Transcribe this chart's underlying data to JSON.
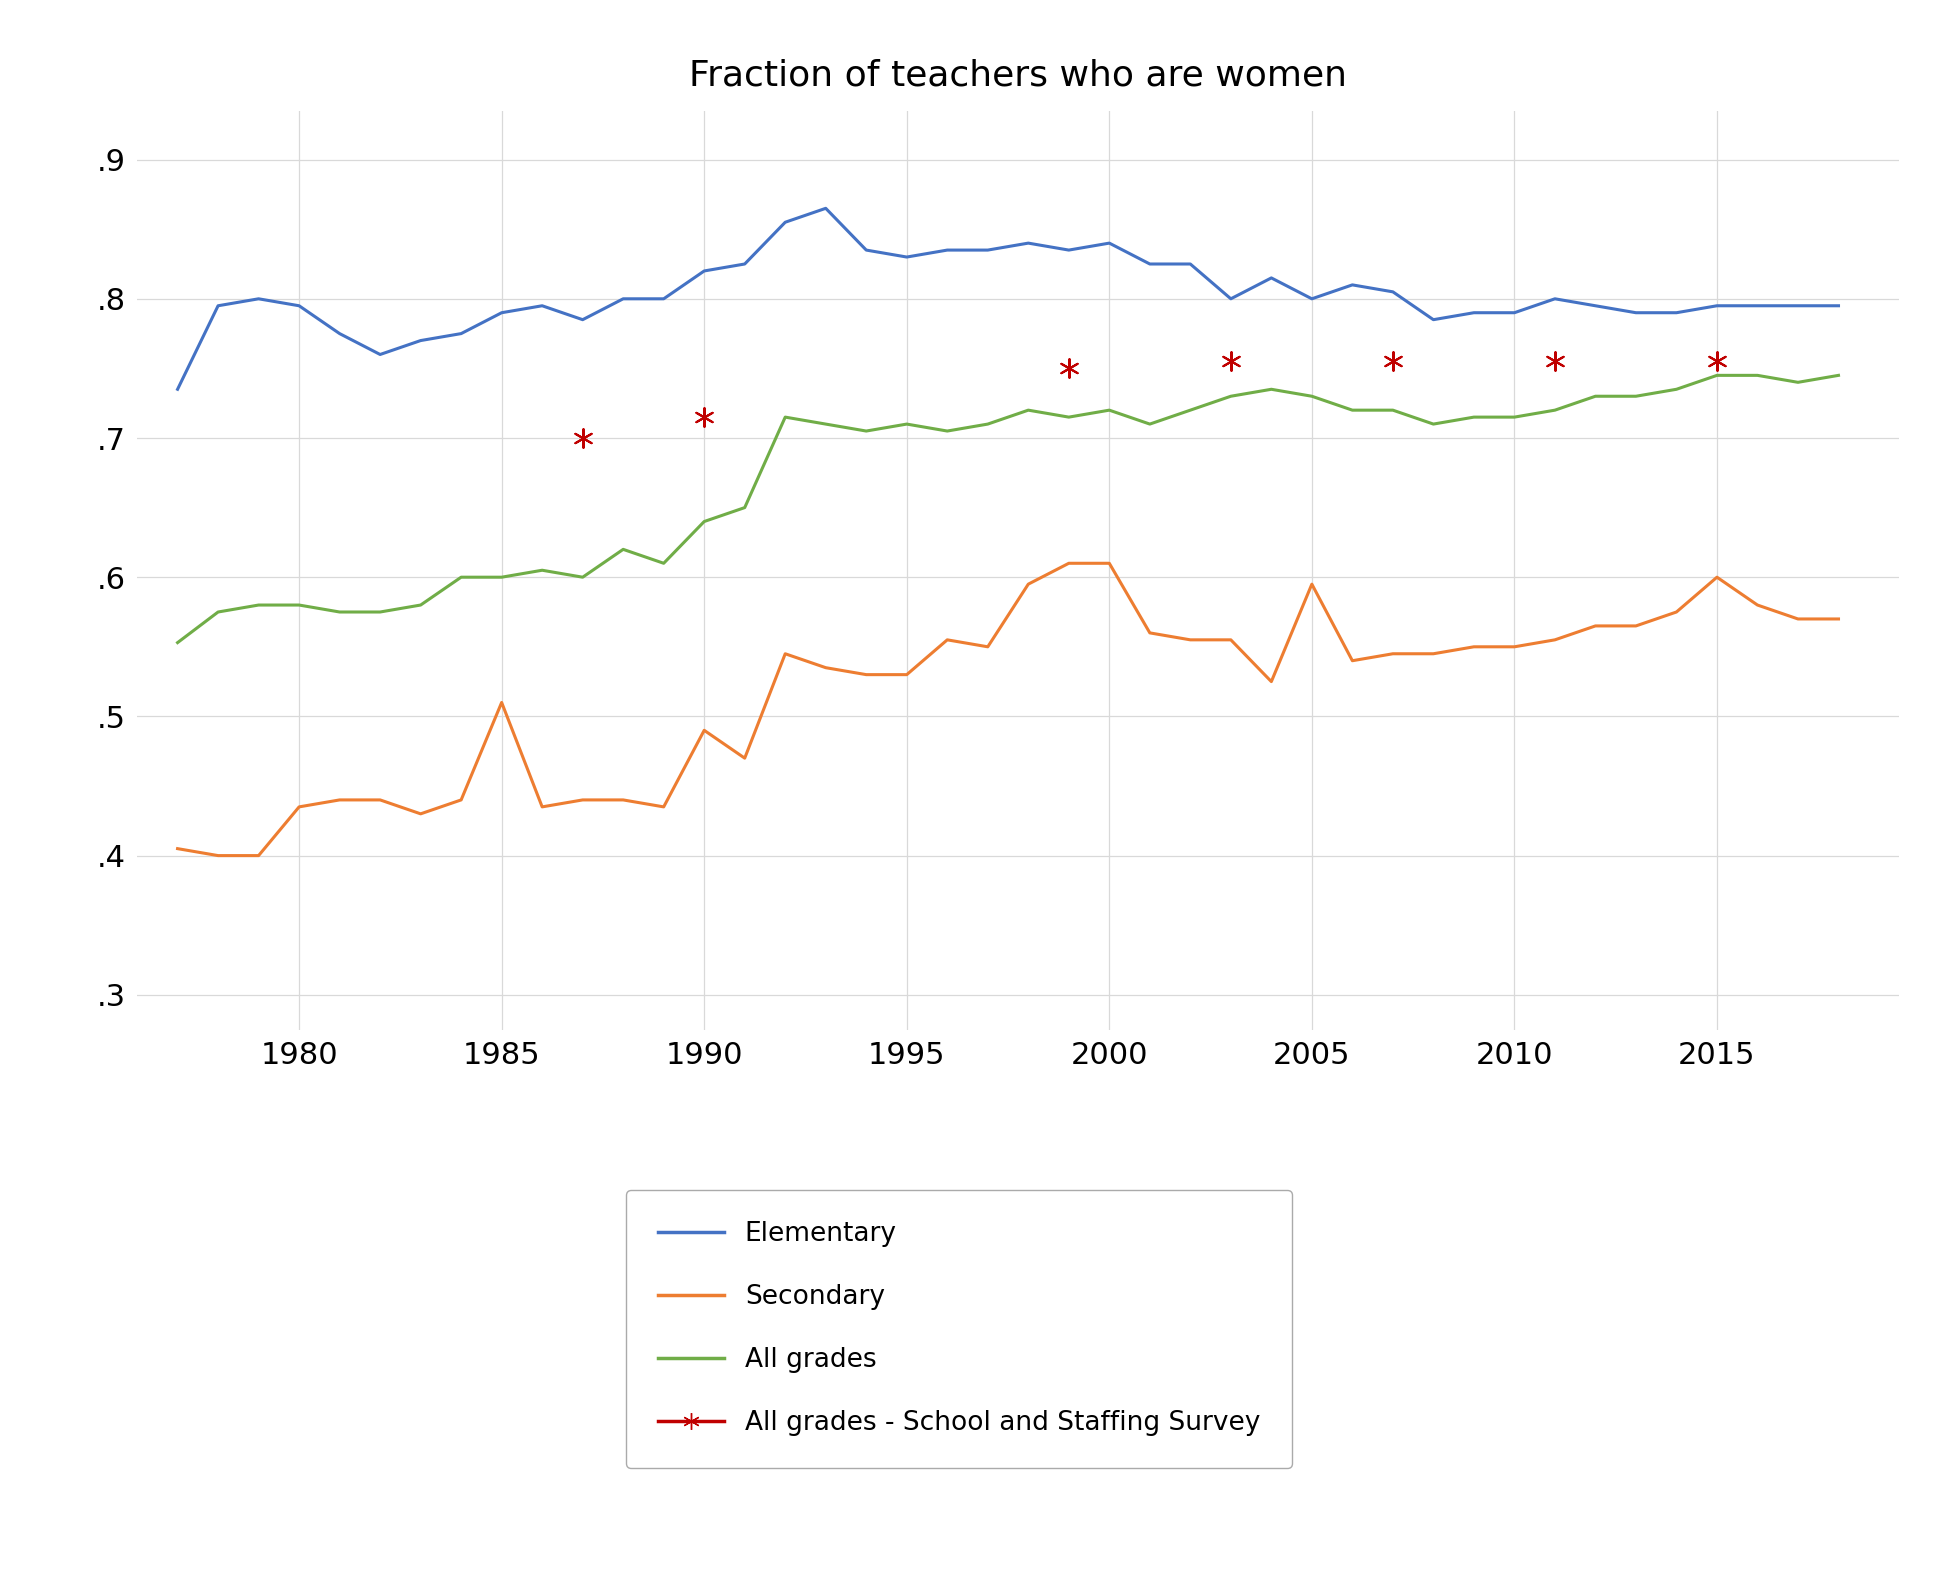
{
  "title": "Fraction of teachers who are women",
  "title_fontsize": 26,
  "xlim": [
    1976,
    2019.5
  ],
  "ylim": [
    0.275,
    0.935
  ],
  "yticks": [
    0.3,
    0.4,
    0.5,
    0.6,
    0.7,
    0.8,
    0.9
  ],
  "ytick_labels": [
    ".3",
    ".4",
    ".5",
    ".6",
    ".7",
    ".8",
    ".9"
  ],
  "xticks": [
    1980,
    1985,
    1990,
    1995,
    2000,
    2005,
    2010,
    2015
  ],
  "elementary": {
    "x": [
      1977,
      1978,
      1979,
      1980,
      1981,
      1982,
      1983,
      1984,
      1985,
      1986,
      1987,
      1988,
      1989,
      1990,
      1991,
      1992,
      1993,
      1994,
      1995,
      1996,
      1997,
      1998,
      1999,
      2000,
      2001,
      2002,
      2003,
      2004,
      2005,
      2006,
      2007,
      2008,
      2009,
      2010,
      2011,
      2012,
      2013,
      2014,
      2015,
      2016,
      2017,
      2018
    ],
    "y": [
      0.735,
      0.795,
      0.8,
      0.795,
      0.775,
      0.76,
      0.77,
      0.775,
      0.79,
      0.795,
      0.785,
      0.8,
      0.8,
      0.82,
      0.825,
      0.855,
      0.865,
      0.835,
      0.83,
      0.835,
      0.835,
      0.84,
      0.835,
      0.84,
      0.825,
      0.825,
      0.8,
      0.815,
      0.8,
      0.81,
      0.805,
      0.785,
      0.79,
      0.79,
      0.8,
      0.795,
      0.79,
      0.79,
      0.795,
      0.795,
      0.795,
      0.795
    ],
    "color": "#4472C4"
  },
  "secondary": {
    "x": [
      1977,
      1978,
      1979,
      1980,
      1981,
      1982,
      1983,
      1984,
      1985,
      1986,
      1987,
      1988,
      1989,
      1990,
      1991,
      1992,
      1993,
      1994,
      1995,
      1996,
      1997,
      1998,
      1999,
      2000,
      2001,
      2002,
      2003,
      2004,
      2005,
      2006,
      2007,
      2008,
      2009,
      2010,
      2011,
      2012,
      2013,
      2014,
      2015,
      2016,
      2017,
      2018
    ],
    "y": [
      0.405,
      0.4,
      0.4,
      0.435,
      0.44,
      0.44,
      0.43,
      0.44,
      0.51,
      0.435,
      0.44,
      0.44,
      0.435,
      0.49,
      0.47,
      0.545,
      0.535,
      0.53,
      0.53,
      0.555,
      0.55,
      0.595,
      0.61,
      0.61,
      0.56,
      0.555,
      0.555,
      0.525,
      0.595,
      0.54,
      0.545,
      0.545,
      0.55,
      0.55,
      0.555,
      0.565,
      0.565,
      0.575,
      0.6,
      0.58,
      0.57,
      0.57
    ],
    "color": "#ED7D31"
  },
  "all_grades": {
    "x": [
      1977,
      1978,
      1979,
      1980,
      1981,
      1982,
      1983,
      1984,
      1985,
      1986,
      1987,
      1988,
      1989,
      1990,
      1991,
      1992,
      1993,
      1994,
      1995,
      1996,
      1997,
      1998,
      1999,
      2000,
      2001,
      2002,
      2003,
      2004,
      2005,
      2006,
      2007,
      2008,
      2009,
      2010,
      2011,
      2012,
      2013,
      2014,
      2015,
      2016,
      2017,
      2018
    ],
    "y": [
      0.553,
      0.575,
      0.58,
      0.58,
      0.575,
      0.575,
      0.58,
      0.6,
      0.6,
      0.605,
      0.6,
      0.62,
      0.61,
      0.64,
      0.65,
      0.715,
      0.71,
      0.705,
      0.71,
      0.705,
      0.71,
      0.72,
      0.715,
      0.72,
      0.71,
      0.72,
      0.73,
      0.735,
      0.73,
      0.72,
      0.72,
      0.71,
      0.715,
      0.715,
      0.72,
      0.73,
      0.73,
      0.735,
      0.745,
      0.745,
      0.74,
      0.745
    ],
    "color": "#70AD47"
  },
  "staffing_survey": {
    "x": [
      1987,
      1990,
      1999,
      2003,
      2007,
      2011,
      2015
    ],
    "y": [
      0.7,
      0.715,
      0.75,
      0.755,
      0.755,
      0.755,
      0.755
    ],
    "color": "#C00000"
  },
  "background_color": "#FFFFFF",
  "legend_fontsize": 19,
  "tick_fontsize": 22,
  "line_width": 2.2,
  "grid_color": "#D9D9D9"
}
